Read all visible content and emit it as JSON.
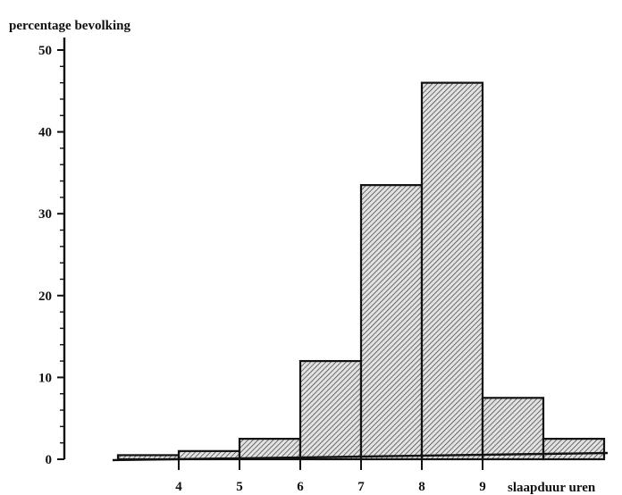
{
  "chart_data": {
    "type": "bar",
    "ylabel": "percentage bevolking",
    "xlabel": "slaapduur uren",
    "ylim": [
      0,
      50
    ],
    "y_ticks": [
      "0",
      "10",
      "20",
      "30",
      "40",
      "50"
    ],
    "x_ticks": [
      "4",
      "5",
      "6",
      "7",
      "8",
      "9"
    ],
    "bins": [
      {
        "from": 3,
        "to": 4,
        "value": 0.5
      },
      {
        "from": 4,
        "to": 5,
        "value": 1
      },
      {
        "from": 5,
        "to": 6,
        "value": 2.5
      },
      {
        "from": 6,
        "to": 7,
        "value": 12
      },
      {
        "from": 7,
        "to": 8,
        "value": 33.5
      },
      {
        "from": 8,
        "to": 9,
        "value": 46
      },
      {
        "from": 9,
        "to": 10,
        "value": 7.5
      },
      {
        "from": 10,
        "to": 11,
        "value": 2.5
      }
    ],
    "grid": false,
    "legend": "none"
  }
}
